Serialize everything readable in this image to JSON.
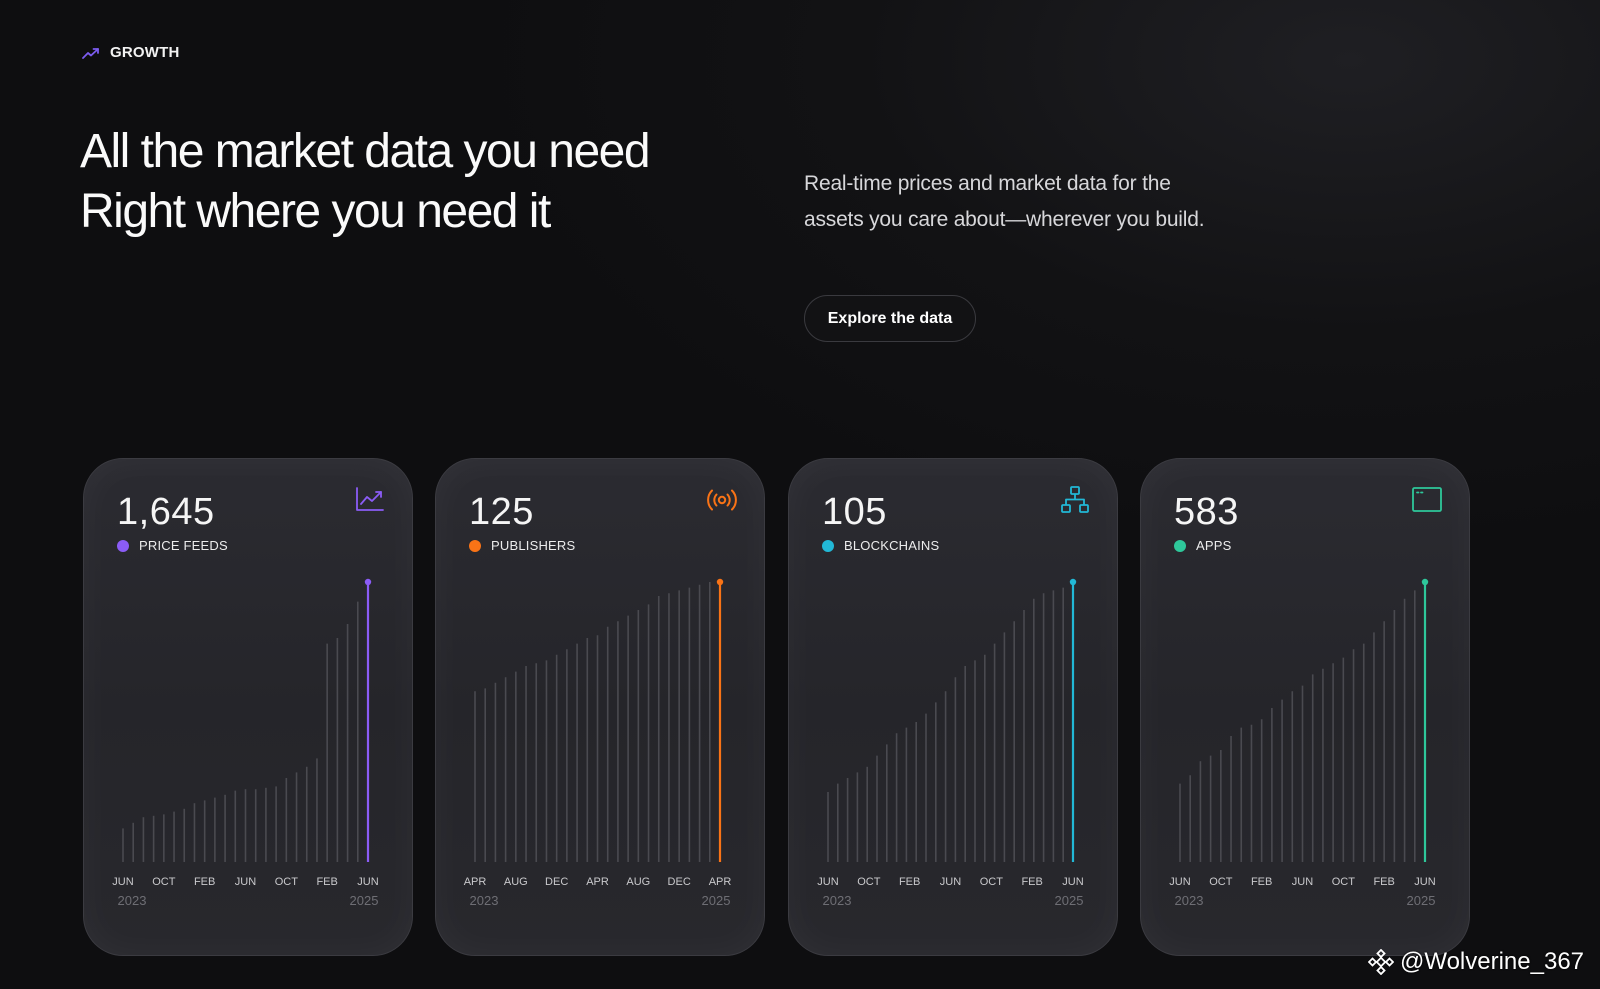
{
  "eyebrow": {
    "label": "GROWTH",
    "icon": "trending-up-icon"
  },
  "headline": {
    "line1": "All the market data you need",
    "line2": "Right where you need it"
  },
  "subtext": {
    "line1": "Real-time prices and market data for the",
    "line2": "assets you care about—wherever you build."
  },
  "cta": {
    "label": "Explore the data"
  },
  "colors": {
    "purple": "#8b5cf6",
    "orange": "#f97316",
    "cyan": "#22b8d6",
    "green": "#2ec79a",
    "bar": "#4a4a50"
  },
  "cards": [
    {
      "value": "1,645",
      "label": "PRICE FEEDS",
      "color": "#8b5cf6",
      "icon": "trending-chart-icon",
      "months": [
        "JUN",
        "OCT",
        "FEB",
        "JUN",
        "OCT",
        "FEB",
        "JUN"
      ],
      "year_start": "2023",
      "year_end": "2025"
    },
    {
      "value": "125",
      "label": "PUBLISHERS",
      "color": "#f97316",
      "icon": "broadcast-icon",
      "months": [
        "APR",
        "AUG",
        "DEC",
        "APR",
        "AUG",
        "DEC",
        "APR"
      ],
      "year_start": "2023",
      "year_end": "2025"
    },
    {
      "value": "105",
      "label": "BLOCKCHAINS",
      "color": "#22b8d6",
      "icon": "network-icon",
      "months": [
        "JUN",
        "OCT",
        "FEB",
        "JUN",
        "OCT",
        "FEB",
        "JUN"
      ],
      "year_start": "2023",
      "year_end": "2025"
    },
    {
      "value": "583",
      "label": "APPS",
      "color": "#2ec79a",
      "icon": "browser-window-icon",
      "months": [
        "JUN",
        "OCT",
        "FEB",
        "JUN",
        "OCT",
        "FEB",
        "JUN"
      ],
      "year_start": "2023",
      "year_end": "2025"
    }
  ],
  "chart_data": [
    {
      "type": "bar",
      "name": "PRICE FEEDS",
      "values": [
        0.12,
        0.14,
        0.16,
        0.165,
        0.17,
        0.18,
        0.19,
        0.21,
        0.22,
        0.23,
        0.24,
        0.255,
        0.26,
        0.26,
        0.265,
        0.27,
        0.3,
        0.32,
        0.34,
        0.37,
        0.78,
        0.8,
        0.85,
        0.93,
        1.0
      ]
    },
    {
      "type": "bar",
      "name": "PUBLISHERS",
      "values": [
        0.61,
        0.62,
        0.64,
        0.66,
        0.68,
        0.7,
        0.71,
        0.72,
        0.74,
        0.76,
        0.78,
        0.8,
        0.81,
        0.84,
        0.86,
        0.88,
        0.9,
        0.92,
        0.95,
        0.96,
        0.97,
        0.98,
        0.99,
        1.0,
        1.0
      ]
    },
    {
      "type": "bar",
      "name": "BLOCKCHAINS",
      "values": [
        0.25,
        0.28,
        0.3,
        0.32,
        0.34,
        0.38,
        0.42,
        0.46,
        0.48,
        0.5,
        0.53,
        0.57,
        0.61,
        0.66,
        0.7,
        0.72,
        0.74,
        0.78,
        0.82,
        0.86,
        0.9,
        0.94,
        0.96,
        0.97,
        0.98,
        1.0
      ]
    },
    {
      "type": "bar",
      "name": "APPS",
      "values": [
        0.28,
        0.31,
        0.36,
        0.38,
        0.4,
        0.45,
        0.48,
        0.49,
        0.51,
        0.55,
        0.58,
        0.61,
        0.63,
        0.67,
        0.69,
        0.71,
        0.73,
        0.76,
        0.78,
        0.82,
        0.86,
        0.9,
        0.94,
        0.97,
        1.0
      ]
    }
  ],
  "watermark": {
    "text": "@Wolverine_367",
    "icon": "binance-logo-icon"
  }
}
